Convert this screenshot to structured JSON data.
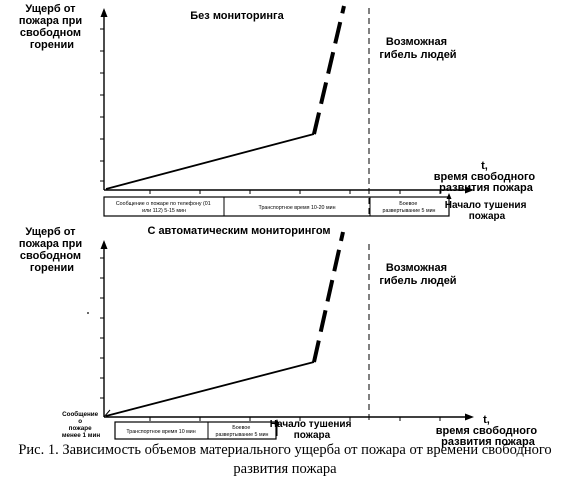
{
  "top_panel": {
    "y_label": [
      "Ущерб от",
      "пожара при",
      "свободном",
      "горении"
    ],
    "title": "Без мониторинга",
    "death_label": [
      "Возможная",
      "гибель людей"
    ],
    "x_label": [
      "t,",
      "время свободного",
      "развития пожара"
    ],
    "phases": [
      "Сообщение о пожаре по телефону (01",
      "или 112) 5-15 мин",
      "Транспортное время 10-20 мин",
      "Боевое",
      "развертывание 5 мин"
    ],
    "start_label": [
      "Начало тушения",
      "пожара"
    ]
  },
  "bottom_panel": {
    "y_label": [
      "Ущерб от",
      "пожара при",
      "свободном",
      "горении"
    ],
    "title": "С автоматическим мониторингом",
    "death_label": [
      "Возможная",
      "гибель людей"
    ],
    "x_label": [
      "t,",
      "время свободного",
      "развития пожара"
    ],
    "phases": [
      "Транспортное время 10 мин",
      "Боевое",
      "развертывание 5 мин"
    ],
    "report_label": [
      "Сообщение",
      "о",
      "пожаре",
      "менее 1 мин"
    ],
    "start_label": [
      "Начало тушения",
      "пожара"
    ]
  },
  "caption": [
    "Рис. 1. Зависимость объемов материального ущерба от пожара от времени свободного",
    "развития пожара"
  ]
}
